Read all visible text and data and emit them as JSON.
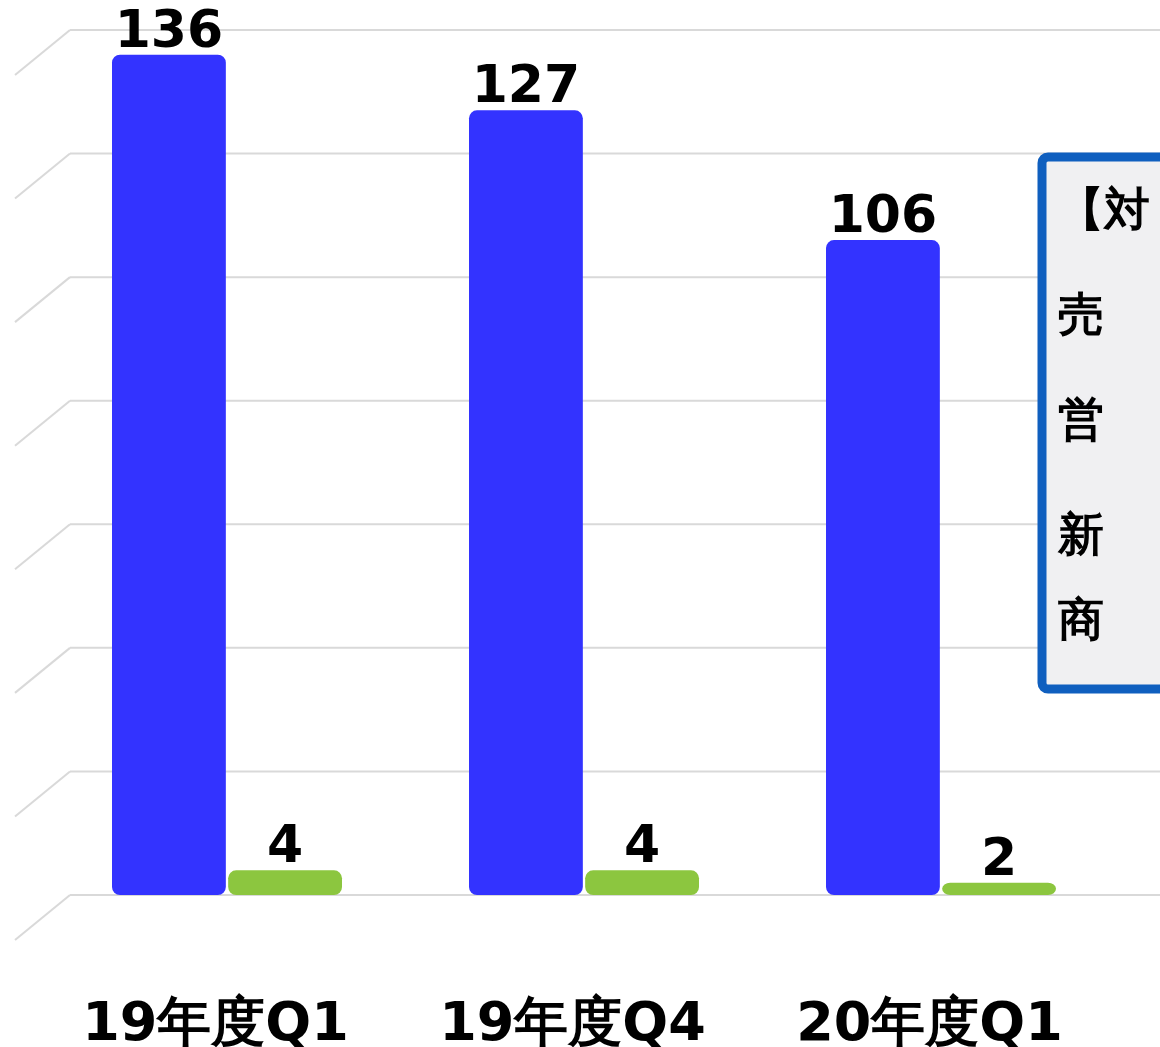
{
  "chart_data": {
    "type": "bar",
    "categories": [
      "19年度Q1",
      "19年度Q4",
      "20年度Q1"
    ],
    "series": [
      {
        "color": "#3333ff",
        "values": [
          136,
          127,
          106
        ]
      },
      {
        "color": "#8cc63f",
        "values": [
          4,
          4,
          2
        ]
      }
    ],
    "data_labels": true,
    "ylim": [
      0,
      140
    ],
    "yticks": [
      {
        "value": 0,
        "label": null
      },
      {
        "value": 20,
        "label": null
      },
      {
        "value": 40,
        "label": null
      },
      {
        "value": 60,
        "label": null
      },
      {
        "value": 80,
        "label": null
      },
      {
        "value": 100,
        "label": null
      },
      {
        "value": 120,
        "label": null
      },
      {
        "value": 140,
        "label": null
      }
    ],
    "tick_labels": "x",
    "grid": "y",
    "annotations": [
      "【対",
      "売",
      "営",
      "新",
      "商"
    ]
  }
}
